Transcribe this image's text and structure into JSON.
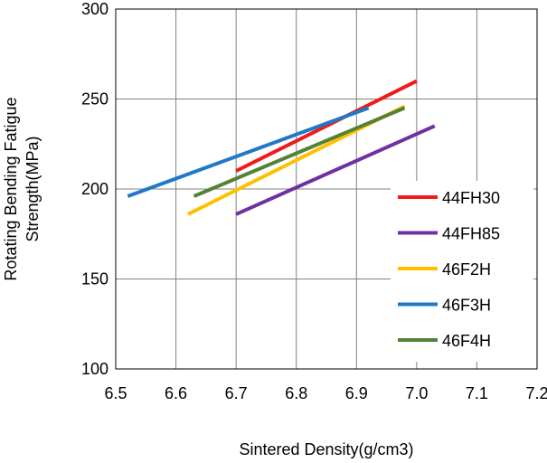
{
  "chart_data": {
    "type": "line",
    "title": "",
    "xlabel": "Sintered Density(g/cm3)",
    "ylabel_lines": [
      "Rotating Bending Fatigue",
      "Strength(MPa)"
    ],
    "xlim": [
      6.5,
      7.2
    ],
    "ylim": [
      100,
      300
    ],
    "xticks": [
      "6.5",
      "6.6",
      "6.7",
      "6.8",
      "6.9",
      "7.0",
      "7.1",
      "7.2"
    ],
    "yticks": [
      "100",
      "150",
      "200",
      "250",
      "300"
    ],
    "grid": true,
    "legend_position": "lower-right",
    "series": [
      {
        "name": "44FH30",
        "color": "#ee1c1c",
        "x": [
          6.7,
          7.0
        ],
        "y": [
          210,
          260
        ]
      },
      {
        "name": "44FH85",
        "color": "#7030a0",
        "x": [
          6.7,
          7.03
        ],
        "y": [
          186,
          235
        ]
      },
      {
        "name": "46F2H",
        "color": "#ffc000",
        "x": [
          6.62,
          6.98
        ],
        "y": [
          186,
          246
        ]
      },
      {
        "name": "46F3H",
        "color": "#1f78c8",
        "x": [
          6.52,
          6.92
        ],
        "y": [
          196,
          245
        ]
      },
      {
        "name": "46F4H",
        "color": "#548235",
        "x": [
          6.63,
          6.98
        ],
        "y": [
          196,
          245
        ]
      }
    ]
  }
}
